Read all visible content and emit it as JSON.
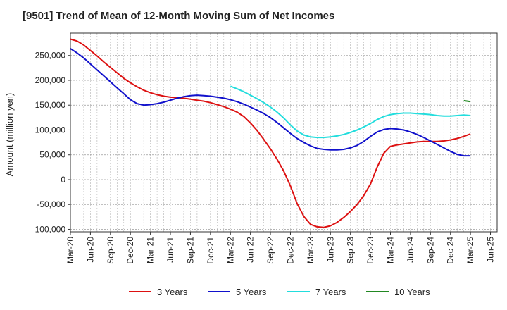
{
  "chart_data": {
    "type": "line",
    "title": "[9501]  Trend of Mean of 12-Month Moving Sum of Net Incomes",
    "xlabel": "",
    "ylabel": "Amount (million yen)",
    "ylim": [
      -105000,
      295000
    ],
    "yticks": [
      {
        "value": 250000,
        "label": "250,000"
      },
      {
        "value": 200000,
        "label": "200,000"
      },
      {
        "value": 150000,
        "label": "150,000"
      },
      {
        "value": 100000,
        "label": "100,000"
      },
      {
        "value": 50000,
        "label": "50,000"
      },
      {
        "value": 0,
        "label": "0"
      },
      {
        "value": -50000,
        "label": "-50,000"
      },
      {
        "value": -100000,
        "label": "-100,000"
      }
    ],
    "xticks": [
      "Mar-20",
      "Jun-20",
      "Sep-20",
      "Dec-20",
      "Mar-21",
      "Jun-21",
      "Sep-21",
      "Dec-21",
      "Mar-22",
      "Jun-22",
      "Sep-22",
      "Dec-22",
      "Mar-23",
      "Jun-23",
      "Sep-23",
      "Dec-23",
      "Mar-24",
      "Jun-24",
      "Sep-24",
      "Dec-24",
      "Mar-25",
      "Jun-25"
    ],
    "x_months": [
      "Mar-20",
      "Apr-20",
      "May-20",
      "Jun-20",
      "Jul-20",
      "Aug-20",
      "Sep-20",
      "Oct-20",
      "Nov-20",
      "Dec-20",
      "Jan-21",
      "Feb-21",
      "Mar-21",
      "Apr-21",
      "May-21",
      "Jun-21",
      "Jul-21",
      "Aug-21",
      "Sep-21",
      "Oct-21",
      "Nov-21",
      "Dec-21",
      "Jan-22",
      "Feb-22",
      "Mar-22",
      "Apr-22",
      "May-22",
      "Jun-22",
      "Jul-22",
      "Aug-22",
      "Sep-22",
      "Oct-22",
      "Nov-22",
      "Dec-22",
      "Jan-23",
      "Feb-23",
      "Mar-23",
      "Apr-23",
      "May-23",
      "Jun-23",
      "Jul-23",
      "Aug-23",
      "Sep-23",
      "Oct-23",
      "Nov-23",
      "Dec-23",
      "Jan-24",
      "Feb-24",
      "Mar-24",
      "Apr-24",
      "May-24",
      "Jun-24",
      "Jul-24",
      "Aug-24",
      "Sep-24",
      "Oct-24",
      "Nov-24",
      "Dec-24",
      "Jan-25",
      "Feb-25",
      "Mar-25"
    ],
    "grid": true,
    "legend_position": "bottom",
    "series": [
      {
        "name": "3 Years",
        "color": "#dd1111",
        "start_index": 0,
        "values": [
          283000,
          279000,
          271000,
          260000,
          249000,
          237000,
          226000,
          215000,
          204000,
          195000,
          187000,
          180000,
          175000,
          171000,
          168000,
          166000,
          165000,
          164000,
          162000,
          160000,
          158000,
          155000,
          151000,
          147000,
          142000,
          136000,
          127000,
          114000,
          99000,
          81000,
          62000,
          41000,
          17000,
          -13000,
          -48000,
          -74000,
          -90000,
          -95000,
          -96000,
          -93000,
          -86000,
          -76000,
          -64000,
          -50000,
          -32000,
          -9000,
          25000,
          53000,
          67000,
          70000,
          72000,
          74000,
          76000,
          77000,
          77000,
          77000,
          78000,
          80000,
          83000,
          87000,
          92000
        ]
      },
      {
        "name": "5 Years",
        "color": "#1111cc",
        "start_index": 0,
        "values": [
          264000,
          255000,
          245000,
          233000,
          221000,
          209000,
          197000,
          185000,
          173000,
          161000,
          153000,
          150000,
          151000,
          153000,
          156000,
          160000,
          164000,
          167000,
          169000,
          170000,
          169000,
          168000,
          166000,
          164000,
          161000,
          157000,
          152000,
          146000,
          140000,
          133000,
          125000,
          115000,
          104000,
          93000,
          83000,
          75000,
          68000,
          63000,
          61000,
          60000,
          60000,
          61000,
          64000,
          69000,
          77000,
          87000,
          96000,
          101000,
          103000,
          102000,
          100000,
          96000,
          91000,
          85000,
          78000,
          71000,
          64000,
          57000,
          51000,
          48000,
          48000
        ]
      },
      {
        "name": "7 Years",
        "color": "#22dddd",
        "start_index": 24,
        "values": [
          188000,
          183000,
          177000,
          170000,
          163000,
          155000,
          146000,
          136000,
          124000,
          110000,
          98000,
          90000,
          86000,
          85000,
          85000,
          86000,
          88000,
          91000,
          95000,
          100000,
          106000,
          113000,
          121000,
          127000,
          131000,
          133000,
          134000,
          134000,
          133000,
          132000,
          131000,
          129000,
          128000,
          128000,
          129000,
          130000,
          129000
        ]
      },
      {
        "name": "10 Years",
        "color": "#228822",
        "start_index": 59,
        "values": [
          159000,
          157000
        ]
      }
    ]
  }
}
